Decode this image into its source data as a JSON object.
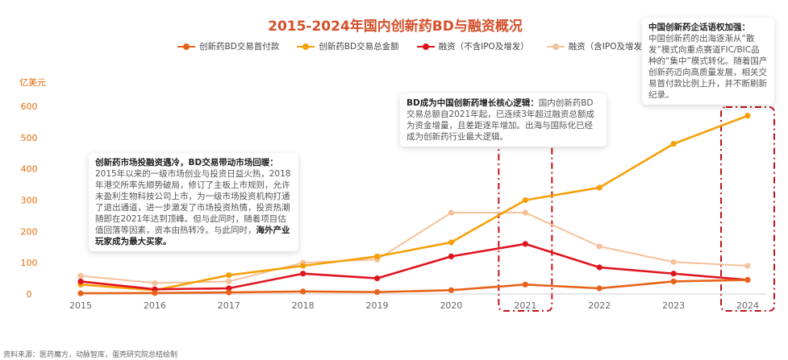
{
  "chart_data": {
    "type": "line",
    "title": "2015-2024年国内创新药BD与融资概况",
    "ylabel": "亿美元",
    "x": [
      "2015",
      "2016",
      "2017",
      "2018",
      "2019",
      "2020",
      "2021",
      "2022",
      "2023",
      "2024"
    ],
    "ylim": [
      0,
      600
    ],
    "yticks": [
      0,
      100,
      200,
      300,
      400,
      500,
      600
    ],
    "grid": false,
    "legend_position": "top",
    "series": [
      {
        "name": "创新药BD交易首付款",
        "color": "#e8631a",
        "values": [
          2,
          3,
          5,
          8,
          6,
          12,
          30,
          18,
          40,
          45
        ]
      },
      {
        "name": "创新药BD交易总金额",
        "color": "#f5a00a",
        "values": [
          30,
          12,
          60,
          90,
          120,
          165,
          300,
          340,
          480,
          570
        ]
      },
      {
        "name": "融资（不含IPO及增发）",
        "color": "#e0141e",
        "values": [
          40,
          15,
          18,
          65,
          50,
          120,
          160,
          85,
          65,
          45
        ]
      },
      {
        "name": "融资（含IPO及增发）",
        "color": "#f5c19a",
        "values": [
          58,
          35,
          40,
          100,
          110,
          260,
          260,
          152,
          102,
          90
        ]
      }
    ],
    "highlight_years": [
      "2021",
      "2024"
    ]
  },
  "annotations": {
    "market": {
      "heading": "创新药市场投融资遇冷，BD交易带动市场回暖：",
      "body": "2015年以来的一级市场创业与投资日益火热，2018年港交所率先顺势破局，修订了主板上市规则，允许未盈利生物科技公司上市，为一级市场投资机构打通了退出通道，进一步激发了市场投资热情，投资热潮随即在2021年达到顶峰。但与此同时，随着项目估值回落等因素，资本由热转冷。与此同时，",
      "emphasis": "海外产业玩家成为最大买家。"
    },
    "bd": {
      "heading": "BD成为中国创新药增长核心逻辑：",
      "body": "国内创新药BD交易总额自2021年起，已连续3年超过融资总额成为资金增量，且差距逐年增加。出海与国际化已经成为创新药行业最大逻辑。"
    },
    "global": {
      "heading": "中国创新药企话语权加强：",
      "body": "中国创新药的出海逐渐从“散发”模式向重点赛道FIC/BIC品种的“集中”模式转化。随着国产创新药迈向高质量发展，相关交易首付款比例上升，并不断刷新纪录。"
    }
  },
  "source": "资料来源：医药魔方，动脉智库，蛋壳研究院总结绘制"
}
